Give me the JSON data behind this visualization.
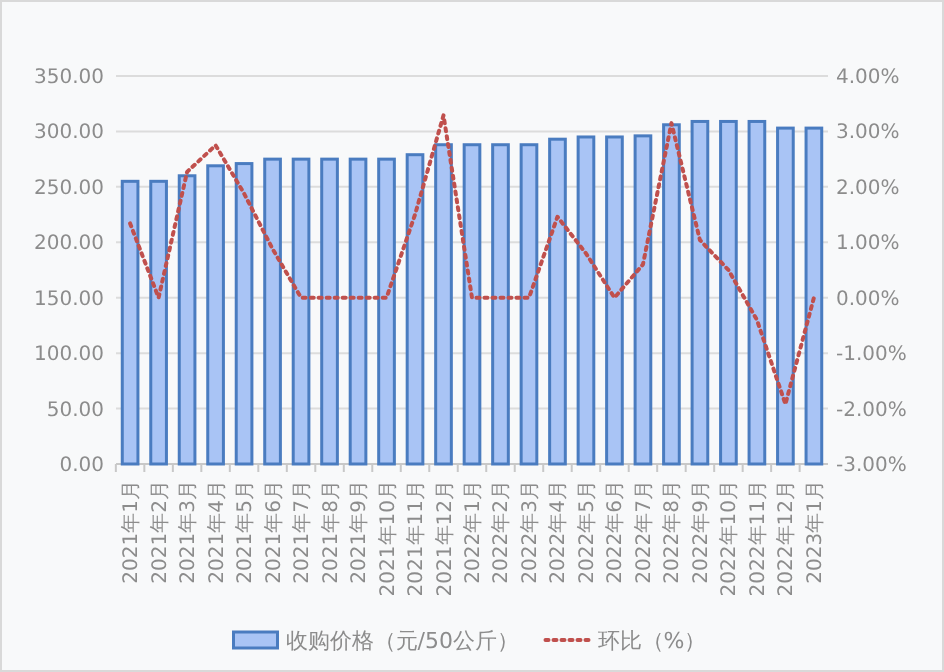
{
  "chart_data": {
    "type": "bar",
    "categories": [
      "2021年1月",
      "2021年2月",
      "2021年3月",
      "2021年4月",
      "2021年5月",
      "2021年6月",
      "2021年7月",
      "2021年8月",
      "2021年9月",
      "2021年10月",
      "2021年11月",
      "2021年12月",
      "2022年1月",
      "2022年2月",
      "2022年3月",
      "2022年4月",
      "2022年5月",
      "2022年6月",
      "2022年7月",
      "2022年8月",
      "2022年9月",
      "2022年10月",
      "2022年11月",
      "2022年12月",
      "2023年1月"
    ],
    "series": [
      {
        "name": "收购价格（元/50公斤）",
        "color": "#a9c4f5",
        "values": [
          255,
          255,
          260,
          269,
          271,
          275,
          275,
          275,
          275,
          275,
          279,
          288,
          288,
          288,
          288,
          293,
          295,
          295,
          296,
          306,
          309,
          309,
          309,
          303,
          303
        ]
      },
      {
        "name": "环比（%）",
        "type": "line",
        "axis": "y2",
        "color": "#c0504d",
        "line_style": "dotted",
        "values": [
          1.34,
          0,
          2.27,
          2.75,
          1.88,
          0.88,
          0,
          0,
          0,
          0,
          1.5,
          3.29,
          0,
          0,
          0,
          1.46,
          0.8,
          0,
          0.6,
          3.15,
          1.04,
          0.5,
          -0.4,
          -1.92,
          0
        ]
      }
    ],
    "ylim": [
      0,
      350
    ],
    "yticks": [
      {
        "value": 0,
        "label": "0.00"
      },
      {
        "value": 50,
        "label": "50.00"
      },
      {
        "value": 100,
        "label": "100.00"
      },
      {
        "value": 150,
        "label": "150.00"
      },
      {
        "value": 200,
        "label": "200.00"
      },
      {
        "value": 250,
        "label": "250.00"
      },
      {
        "value": 300,
        "label": "300.00"
      },
      {
        "value": 350,
        "label": "350.00"
      }
    ],
    "y2lim": [
      -3,
      4
    ],
    "y2ticks": [
      {
        "value": -3,
        "label": "-3.00%"
      },
      {
        "value": -2,
        "label": "-2.00%"
      },
      {
        "value": -1,
        "label": "-1.00%"
      },
      {
        "value": 0,
        "label": "0.00%"
      },
      {
        "value": 1,
        "label": "1.00%"
      },
      {
        "value": 2,
        "label": "2.00%"
      },
      {
        "value": 3,
        "label": "3.00%"
      },
      {
        "value": 4,
        "label": "4.00%"
      }
    ],
    "grid": "y",
    "legend": "bottom"
  }
}
